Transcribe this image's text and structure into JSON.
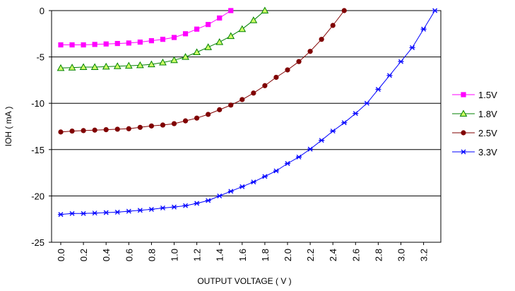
{
  "chart_data": {
    "type": "line",
    "xlabel": "OUTPUT VOLTAGE ( V )",
    "ylabel": "IOH ( mA )",
    "xlim": [
      0.0,
      3.3
    ],
    "ylim": [
      -25,
      0
    ],
    "xticks": [
      "0.0",
      "0.2",
      "0.4",
      "0.6",
      "0.8",
      "1.0",
      "1.2",
      "1.4",
      "1.6",
      "1.8",
      "2.0",
      "2.2",
      "2.4",
      "2.6",
      "2.8",
      "3.0",
      "3.2"
    ],
    "yticks": [
      "0",
      "-5",
      "-10",
      "-15",
      "-20",
      "-25"
    ],
    "grid": "horizontal",
    "legend_position": "right",
    "series": [
      {
        "name": "1.5V",
        "color": "#ff00ff",
        "marker": "square",
        "x": [
          0.0,
          0.1,
          0.2,
          0.3,
          0.4,
          0.5,
          0.6,
          0.7,
          0.8,
          0.9,
          1.0,
          1.1,
          1.2,
          1.3,
          1.4,
          1.5
        ],
        "y": [
          -3.7,
          -3.7,
          -3.7,
          -3.65,
          -3.6,
          -3.55,
          -3.5,
          -3.4,
          -3.25,
          -3.1,
          -2.9,
          -2.5,
          -2.0,
          -1.5,
          -0.8,
          0.0
        ]
      },
      {
        "name": "1.8V",
        "color": "#008000",
        "marker": "triangle",
        "x": [
          0.0,
          0.1,
          0.2,
          0.3,
          0.4,
          0.5,
          0.6,
          0.7,
          0.8,
          0.9,
          1.0,
          1.1,
          1.2,
          1.3,
          1.4,
          1.5,
          1.6,
          1.7,
          1.8
        ],
        "y": [
          -6.2,
          -6.15,
          -6.1,
          -6.1,
          -6.05,
          -6.0,
          -5.95,
          -5.9,
          -5.8,
          -5.6,
          -5.35,
          -5.0,
          -4.5,
          -3.95,
          -3.4,
          -2.75,
          -2.0,
          -1.05,
          0.0
        ]
      },
      {
        "name": "2.5V",
        "color": "#800000",
        "marker": "circle",
        "x": [
          0.0,
          0.1,
          0.2,
          0.3,
          0.4,
          0.5,
          0.6,
          0.7,
          0.8,
          0.9,
          1.0,
          1.1,
          1.2,
          1.3,
          1.4,
          1.5,
          1.6,
          1.7,
          1.8,
          1.9,
          2.0,
          2.1,
          2.2,
          2.3,
          2.4,
          2.5
        ],
        "y": [
          -13.1,
          -13.0,
          -12.95,
          -12.9,
          -12.85,
          -12.8,
          -12.75,
          -12.6,
          -12.45,
          -12.35,
          -12.2,
          -11.9,
          -11.6,
          -11.2,
          -10.7,
          -10.2,
          -9.6,
          -8.9,
          -8.1,
          -7.2,
          -6.4,
          -5.5,
          -4.4,
          -3.1,
          -1.6,
          0.0
        ]
      },
      {
        "name": "3.3V",
        "color": "#0000ff",
        "marker": "star",
        "x": [
          0.0,
          0.1,
          0.2,
          0.3,
          0.4,
          0.5,
          0.6,
          0.7,
          0.8,
          0.9,
          1.0,
          1.1,
          1.2,
          1.3,
          1.4,
          1.5,
          1.6,
          1.7,
          1.8,
          1.9,
          2.0,
          2.1,
          2.2,
          2.3,
          2.4,
          2.5,
          2.6,
          2.7,
          2.8,
          2.9,
          3.0,
          3.1,
          3.2,
          3.3
        ],
        "y": [
          -22.0,
          -21.9,
          -21.9,
          -21.85,
          -21.8,
          -21.75,
          -21.65,
          -21.55,
          -21.45,
          -21.3,
          -21.2,
          -21.05,
          -20.8,
          -20.5,
          -20.0,
          -19.5,
          -19.0,
          -18.5,
          -17.9,
          -17.3,
          -16.5,
          -15.8,
          -14.95,
          -14.0,
          -13.0,
          -12.1,
          -11.1,
          -10.0,
          -8.5,
          -7.0,
          -5.5,
          -4.0,
          -2.0,
          0.0
        ]
      }
    ]
  }
}
